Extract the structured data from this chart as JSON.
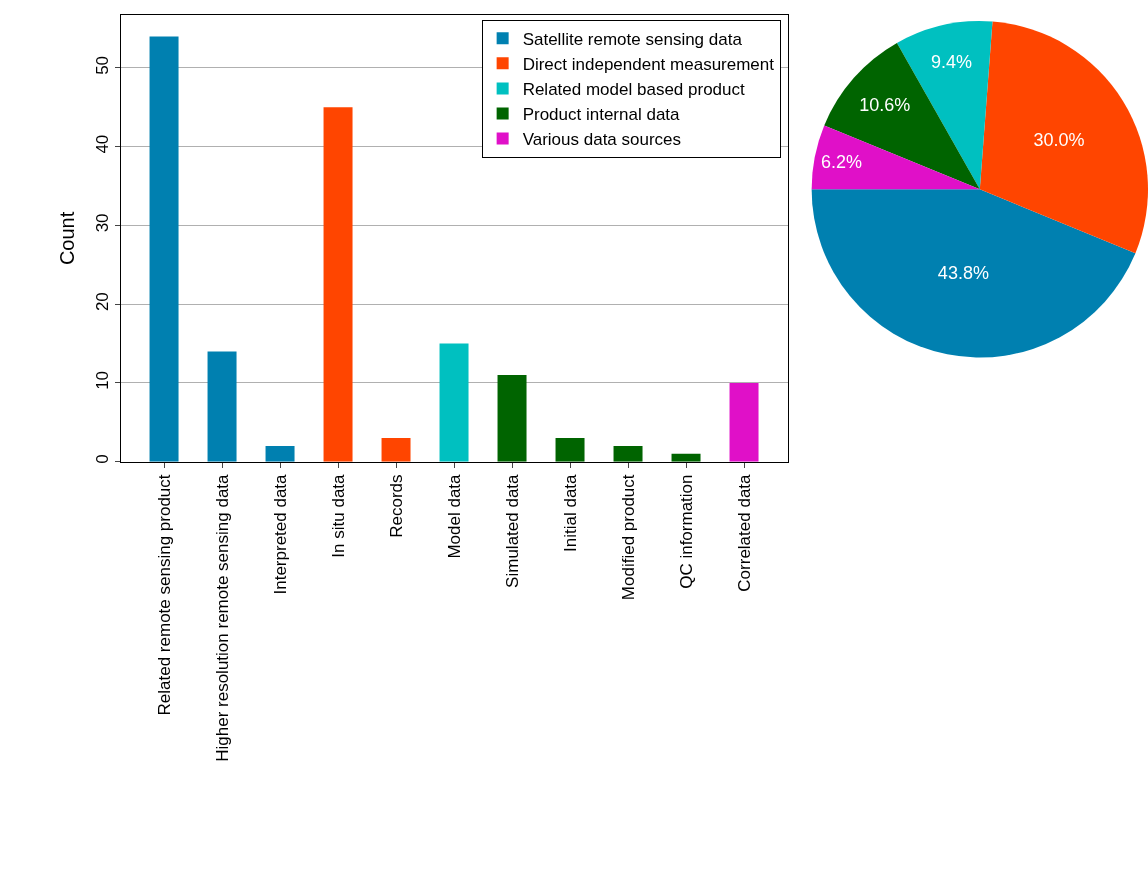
{
  "chart_data": [
    {
      "type": "bar",
      "ylabel": "Count",
      "categories": [
        "Related remote sensing product",
        "Higher resolution remote sensing data",
        "Interpreted data",
        "In situ data",
        "Records",
        "Model data",
        "Simulated data",
        "Initial data",
        "Modified product",
        "QC information",
        "Correlated data"
      ],
      "series": [
        {
          "name": "Satellite remote sensing data",
          "color": "#0080b0",
          "values": [
            54,
            14,
            2,
            null,
            null,
            null,
            null,
            null,
            null,
            null,
            null
          ]
        },
        {
          "name": "Direct independent measurement",
          "color": "#ff4500",
          "values": [
            null,
            null,
            null,
            45,
            3,
            null,
            null,
            null,
            null,
            null,
            null
          ]
        },
        {
          "name": "Related model based product",
          "color": "#00c0c0",
          "values": [
            null,
            null,
            null,
            null,
            null,
            15,
            null,
            null,
            null,
            null,
            null
          ]
        },
        {
          "name": "Product internal data",
          "color": "#006400",
          "values": [
            null,
            null,
            null,
            null,
            null,
            null,
            11,
            3,
            2,
            1,
            null
          ]
        },
        {
          "name": "Various data sources",
          "color": "#e010c8",
          "values": [
            null,
            null,
            null,
            null,
            null,
            null,
            null,
            null,
            null,
            null,
            10
          ]
        }
      ],
      "ylim": [
        0,
        56.7
      ],
      "yticks": [
        0,
        10,
        20,
        30,
        40,
        50
      ],
      "grid": "y",
      "legend": "top right"
    },
    {
      "type": "pie",
      "categories": [
        null,
        null,
        null,
        null,
        null
      ],
      "values": [
        43.8,
        30.0,
        9.4,
        10.6,
        6.2
      ],
      "value_labels": [
        "43.8%",
        "30.0%",
        "9.4%",
        "10.6%",
        "6.2%"
      ],
      "colors": [
        "#0080b0",
        "#ff4500",
        "#00c0c0",
        "#006400",
        "#e010c8"
      ]
    }
  ]
}
